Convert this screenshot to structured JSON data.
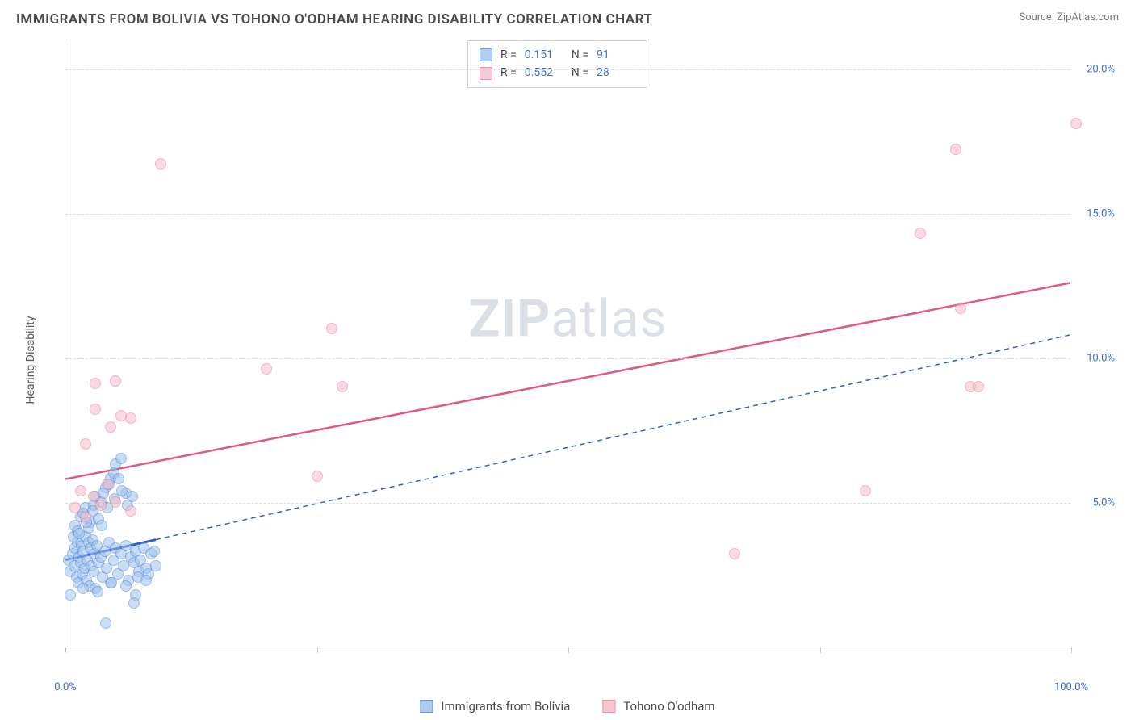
{
  "header": {
    "title": "IMMIGRANTS FROM BOLIVIA VS TOHONO O'ODHAM HEARING DISABILITY CORRELATION CHART",
    "source_prefix": "Source: ",
    "source_name": "ZipAtlas.com"
  },
  "watermark": {
    "zip": "ZIP",
    "atlas": "atlas"
  },
  "chart": {
    "type": "scatter",
    "ylabel": "Hearing Disability",
    "background_color": "#ffffff",
    "grid_color": "#dcdcdc",
    "axis_color": "#c8c8c8",
    "tick_label_color": "#3b6fd6",
    "xlim": [
      0,
      100
    ],
    "ylim": [
      0,
      21
    ],
    "ytick_values": [
      5,
      10,
      15,
      20
    ],
    "ytick_labels": [
      "5.0%",
      "10.0%",
      "15.0%",
      "20.0%"
    ],
    "xtick_values": [
      0,
      25,
      50,
      75,
      100
    ],
    "xtick_left_label": "0.0%",
    "xtick_right_label": "100.0%",
    "marker_radius": 7,
    "marker_border_width": 1,
    "series": [
      {
        "name": "Immigrants from Bolivia",
        "fill": "#9fc2ee",
        "stroke": "#4e88d8",
        "fill_opacity": 0.55,
        "r_value": "0.151",
        "n_value": "91",
        "trend": {
          "y_at_x0": 3.0,
          "y_at_x100": 10.8,
          "solid_until_x": 9,
          "stroke_width": 2,
          "dash": "6,5",
          "color": "#2f63c5"
        },
        "points": [
          [
            0.3,
            3.0
          ],
          [
            0.5,
            2.6
          ],
          [
            0.7,
            3.2
          ],
          [
            0.9,
            2.8
          ],
          [
            1.0,
            3.4
          ],
          [
            1.1,
            2.4
          ],
          [
            1.2,
            3.6
          ],
          [
            1.3,
            2.2
          ],
          [
            1.4,
            3.1
          ],
          [
            1.5,
            2.9
          ],
          [
            1.6,
            3.5
          ],
          [
            1.7,
            2.5
          ],
          [
            1.8,
            3.3
          ],
          [
            1.9,
            2.7
          ],
          [
            2.0,
            3.8
          ],
          [
            2.1,
            2.3
          ],
          [
            2.2,
            3.0
          ],
          [
            2.3,
            3.6
          ],
          [
            2.4,
            2.1
          ],
          [
            2.5,
            3.4
          ],
          [
            2.6,
            2.8
          ],
          [
            2.7,
            3.7
          ],
          [
            2.8,
            2.6
          ],
          [
            2.9,
            3.2
          ],
          [
            3.0,
            2.0
          ],
          [
            3.1,
            3.5
          ],
          [
            3.3,
            2.9
          ],
          [
            3.5,
            3.1
          ],
          [
            3.7,
            2.4
          ],
          [
            3.9,
            3.3
          ],
          [
            4.1,
            2.7
          ],
          [
            4.3,
            3.6
          ],
          [
            4.5,
            2.2
          ],
          [
            4.8,
            3.0
          ],
          [
            5.0,
            3.4
          ],
          [
            5.2,
            2.5
          ],
          [
            5.5,
            3.2
          ],
          [
            5.8,
            2.8
          ],
          [
            6.0,
            3.5
          ],
          [
            6.3,
            2.3
          ],
          [
            6.5,
            3.1
          ],
          [
            6.8,
            2.9
          ],
          [
            7.0,
            3.3
          ],
          [
            7.3,
            2.6
          ],
          [
            7.5,
            3.0
          ],
          [
            7.8,
            3.4
          ],
          [
            8.0,
            2.7
          ],
          [
            8.5,
            3.2
          ],
          [
            1.0,
            4.2
          ],
          [
            1.5,
            4.5
          ],
          [
            2.0,
            4.8
          ],
          [
            2.5,
            4.3
          ],
          [
            3.0,
            5.2
          ],
          [
            3.5,
            5.0
          ],
          [
            4.0,
            5.5
          ],
          [
            4.5,
            5.8
          ],
          [
            5.0,
            6.3
          ],
          [
            5.5,
            6.5
          ],
          [
            6.0,
            5.3
          ],
          [
            1.2,
            4.0
          ],
          [
            1.8,
            4.6
          ],
          [
            2.3,
            4.1
          ],
          [
            2.8,
            4.9
          ],
          [
            3.3,
            4.4
          ],
          [
            3.8,
            5.3
          ],
          [
            4.3,
            5.6
          ],
          [
            4.8,
            6.0
          ],
          [
            5.3,
            5.8
          ],
          [
            0.8,
            3.8
          ],
          [
            1.4,
            3.9
          ],
          [
            2.1,
            4.3
          ],
          [
            2.7,
            4.7
          ],
          [
            3.6,
            4.2
          ],
          [
            4.2,
            4.8
          ],
          [
            4.9,
            5.1
          ],
          [
            5.6,
            5.4
          ],
          [
            6.2,
            4.9
          ],
          [
            6.7,
            5.2
          ],
          [
            7.2,
            2.4
          ],
          [
            8.3,
            2.5
          ],
          [
            9.0,
            2.8
          ],
          [
            0.5,
            1.8
          ],
          [
            1.8,
            2.0
          ],
          [
            4.6,
            2.2
          ],
          [
            3.2,
            1.9
          ],
          [
            6.0,
            2.1
          ],
          [
            7.0,
            1.8
          ],
          [
            8.0,
            2.3
          ],
          [
            4.0,
            0.8
          ],
          [
            6.8,
            1.5
          ],
          [
            8.8,
            3.3
          ]
        ]
      },
      {
        "name": "Tohono O'odham",
        "fill": "#f6bcc8",
        "stroke": "#e97b95",
        "fill_opacity": 0.55,
        "r_value": "0.552",
        "n_value": "28",
        "trend": {
          "y_at_x0": 5.8,
          "y_at_x100": 12.6,
          "solid_until_x": 100,
          "stroke_width": 2.5,
          "dash": "",
          "color": "#e05a7d"
        },
        "points": [
          [
            1.0,
            4.8
          ],
          [
            1.5,
            5.4
          ],
          [
            2.0,
            4.5
          ],
          [
            2.8,
            5.2
          ],
          [
            3.5,
            4.9
          ],
          [
            4.2,
            5.6
          ],
          [
            5.0,
            5.0
          ],
          [
            6.5,
            4.7
          ],
          [
            2.0,
            7.0
          ],
          [
            3.0,
            8.2
          ],
          [
            4.5,
            7.6
          ],
          [
            6.5,
            7.9
          ],
          [
            5.5,
            8.0
          ],
          [
            5.0,
            9.2
          ],
          [
            3.0,
            9.1
          ],
          [
            20.0,
            9.6
          ],
          [
            25.0,
            5.9
          ],
          [
            26.5,
            11.0
          ],
          [
            27.5,
            9.0
          ],
          [
            9.5,
            16.7
          ],
          [
            66.5,
            3.2
          ],
          [
            79.5,
            5.4
          ],
          [
            85.0,
            14.3
          ],
          [
            89.0,
            11.7
          ],
          [
            90.0,
            9.0
          ],
          [
            90.8,
            9.0
          ],
          [
            88.5,
            17.2
          ],
          [
            100.5,
            18.1
          ]
        ]
      }
    ],
    "legend": {
      "r_label": "R =",
      "n_label": "N ="
    },
    "bottom_legend": {
      "items": [
        "Immigrants from Bolivia",
        "Tohono O'odham"
      ]
    }
  }
}
